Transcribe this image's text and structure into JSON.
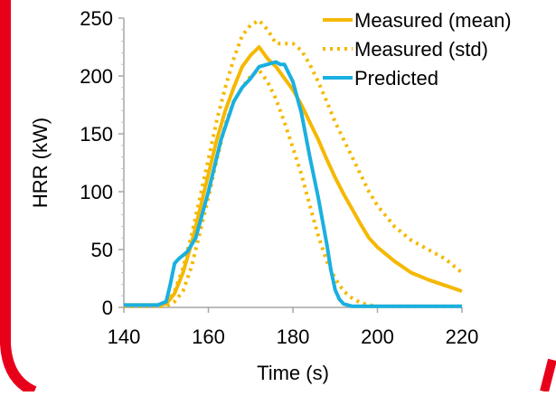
{
  "colors": {
    "frame": "#e8001b",
    "mean": "#f5b800",
    "std": "#f5b800",
    "predicted": "#1ab0e0"
  },
  "chart_data": {
    "type": "line",
    "xlabel": "Time (s)",
    "ylabel": "HRR (kW)",
    "xlim": [
      140,
      220
    ],
    "ylim": [
      0,
      250
    ],
    "xticks": [
      140,
      160,
      180,
      200,
      220
    ],
    "yticks": [
      0,
      50,
      100,
      150,
      200,
      250
    ],
    "grid": false,
    "legend_position": "top-right",
    "series": [
      {
        "name": "Measured (mean)",
        "style": "solid",
        "x": [
          140,
          148,
          150,
          152,
          154,
          156,
          158,
          160,
          162,
          164,
          166,
          168,
          170,
          172,
          174,
          176,
          178,
          180,
          182,
          184,
          186,
          188,
          190,
          192,
          194,
          196,
          198,
          200,
          204,
          208,
          212,
          216,
          220
        ],
        "y": [
          2,
          2,
          3,
          12,
          30,
          55,
          85,
          115,
          145,
          170,
          190,
          208,
          218,
          225,
          215,
          208,
          198,
          188,
          175,
          160,
          145,
          128,
          112,
          98,
          85,
          72,
          60,
          52,
          40,
          30,
          24,
          19,
          14
        ]
      },
      {
        "name": "Measured (std)",
        "style": "dotted",
        "x": [
          140,
          148,
          150,
          152,
          154,
          156,
          158,
          160,
          162,
          164,
          166,
          168,
          170,
          172,
          174,
          176,
          178,
          180,
          182,
          184,
          186,
          188,
          190,
          192,
          194,
          196,
          198,
          200,
          204,
          208,
          212,
          216,
          220
        ],
        "y": [
          2,
          2,
          3,
          14,
          34,
          62,
          95,
          128,
          162,
          190,
          215,
          235,
          244,
          248,
          240,
          228,
          228,
          228,
          222,
          210,
          195,
          178,
          160,
          145,
          130,
          115,
          100,
          88,
          70,
          58,
          50,
          42,
          30
        ]
      },
      {
        "name": "Measured (std)",
        "style": "dotted",
        "x": [
          140,
          150,
          152,
          154,
          156,
          158,
          160,
          162,
          164,
          166,
          168,
          170,
          172,
          174,
          176,
          178,
          180,
          182,
          184,
          186,
          188,
          190,
          192,
          194,
          196,
          198,
          200,
          202,
          220
        ],
        "y": [
          1,
          1,
          5,
          14,
          35,
          65,
          95,
          128,
          158,
          178,
          190,
          200,
          205,
          195,
          180,
          160,
          138,
          115,
          88,
          62,
          40,
          25,
          14,
          8,
          4,
          2,
          1,
          1,
          1
        ]
      },
      {
        "name": "Predicted",
        "style": "solid",
        "x": [
          140,
          148,
          150,
          151,
          152,
          153,
          155,
          157,
          160,
          163,
          166,
          168,
          170,
          172,
          174,
          176,
          177,
          178,
          180,
          182,
          184,
          186,
          188,
          189,
          190,
          191,
          192,
          194,
          196,
          200,
          220
        ],
        "y": [
          2,
          2,
          5,
          20,
          38,
          42,
          48,
          60,
          100,
          145,
          178,
          190,
          198,
          208,
          210,
          212,
          210,
          210,
          195,
          168,
          130,
          95,
          55,
          32,
          15,
          7,
          3,
          1,
          1,
          1,
          1
        ]
      }
    ],
    "legend": [
      {
        "label": "Measured (mean)",
        "style": "solid",
        "color_key": "mean"
      },
      {
        "label": "Measured (std)",
        "style": "dotted",
        "color_key": "std"
      },
      {
        "label": "Predicted",
        "style": "solid",
        "color_key": "predicted"
      }
    ]
  }
}
